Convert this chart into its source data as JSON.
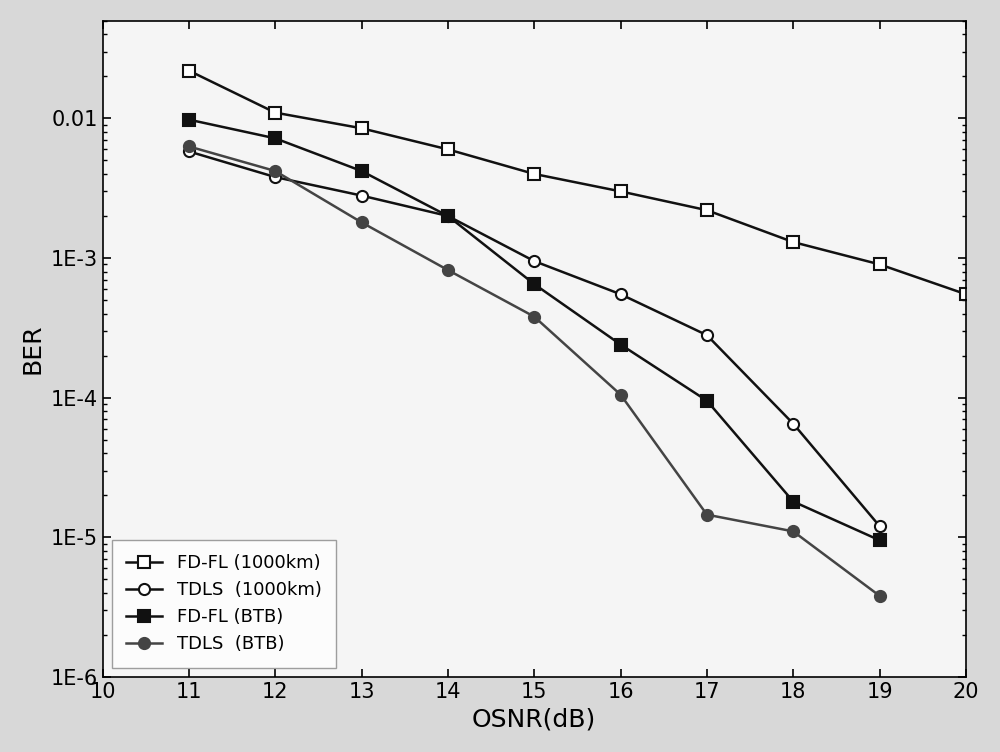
{
  "title": "",
  "xlabel": "OSNR(dB)",
  "ylabel": "BER",
  "xlim": [
    10,
    20
  ],
  "ylim": [
    1e-06,
    0.05
  ],
  "xticks": [
    10,
    11,
    12,
    13,
    14,
    15,
    16,
    17,
    18,
    19,
    20
  ],
  "series": [
    {
      "label": "FD-FL (1000km)",
      "x": [
        11,
        12,
        13,
        14,
        15,
        16,
        17,
        18,
        19,
        20
      ],
      "y": [
        0.022,
        0.011,
        0.0085,
        0.006,
        0.004,
        0.003,
        0.0022,
        0.0013,
        0.0009,
        0.00055
      ],
      "color": "#111111",
      "marker": "s",
      "marker_fill": "white",
      "marker_edge": "#111111",
      "linestyle": "-",
      "linewidth": 1.8,
      "markersize": 8
    },
    {
      "label": "TDLS  (1000km)",
      "x": [
        11,
        12,
        13,
        14,
        15,
        16,
        17,
        18,
        19
      ],
      "y": [
        0.0058,
        0.0038,
        0.0028,
        0.002,
        0.00095,
        0.00055,
        0.00028,
        6.5e-05,
        1.2e-05
      ],
      "color": "#111111",
      "marker": "o",
      "marker_fill": "white",
      "marker_edge": "#111111",
      "linestyle": "-",
      "linewidth": 1.8,
      "markersize": 8
    },
    {
      "label": "FD-FL (BTB)",
      "x": [
        11,
        12,
        13,
        14,
        15,
        16,
        17,
        18,
        19
      ],
      "y": [
        0.0098,
        0.0072,
        0.0042,
        0.002,
        0.00065,
        0.00024,
        9.5e-05,
        1.8e-05,
        9.5e-06
      ],
      "color": "#111111",
      "marker": "s",
      "marker_fill": "#111111",
      "marker_edge": "#111111",
      "linestyle": "-",
      "linewidth": 1.8,
      "markersize": 8
    },
    {
      "label": "TDLS  (BTB)",
      "x": [
        11,
        12,
        13,
        14,
        15,
        16,
        17,
        18,
        19
      ],
      "y": [
        0.0063,
        0.0042,
        0.0018,
        0.00082,
        0.00038,
        0.000105,
        1.45e-05,
        1.1e-05,
        3.8e-06
      ],
      "color": "#444444",
      "marker": "o",
      "marker_fill": "#444444",
      "marker_edge": "#444444",
      "linestyle": "-",
      "linewidth": 1.8,
      "markersize": 8
    }
  ],
  "legend_loc": "lower left",
  "background_color": "#d8d8d8",
  "plot_background": "#f5f5f5",
  "grid": false,
  "xlabel_fontsize": 18,
  "ylabel_fontsize": 18,
  "tick_fontsize": 15,
  "legend_fontsize": 13
}
